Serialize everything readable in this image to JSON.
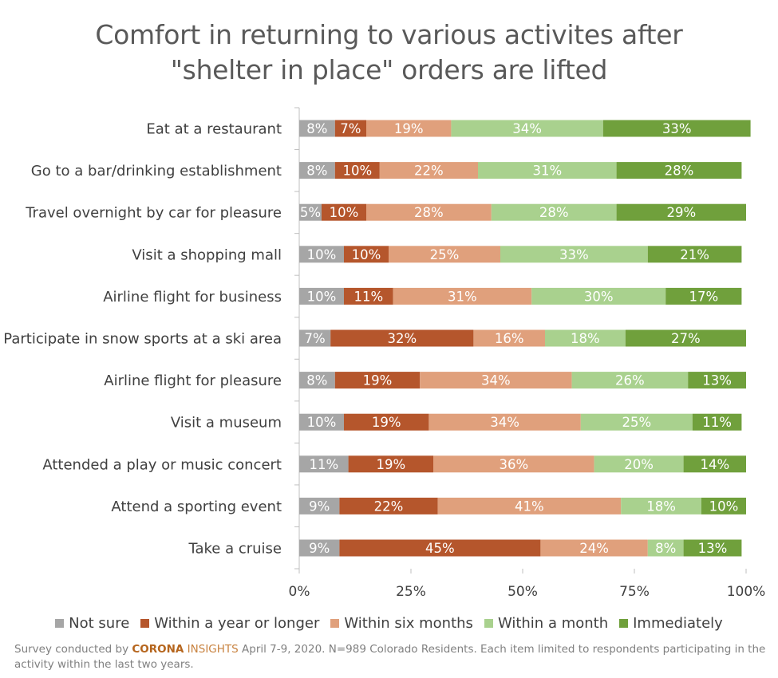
{
  "title_line1": "Comfort in returning to various activites after",
  "title_line2": "\"shelter in place\" orders are lifted",
  "chart_data": {
    "type": "bar",
    "orientation": "horizontal",
    "stacked": "100%",
    "categories": [
      "Eat at a restaurant",
      "Go to a bar/drinking establishment",
      "Travel overnight by car for pleasure",
      "Visit a shopping mall",
      "Airline flight for business",
      "Participate in snow sports at a ski area",
      "Airline flight for pleasure",
      "Visit a museum",
      "Attended a play or music concert",
      "Attend a sporting event",
      "Take a cruise"
    ],
    "series": [
      {
        "name": "Not sure",
        "color": "#a6a6a6",
        "label_color": "#ffffff",
        "values": [
          8,
          8,
          5,
          10,
          10,
          7,
          8,
          10,
          11,
          9,
          9
        ]
      },
      {
        "name": "Within a year or longer",
        "color": "#b5562c",
        "label_color": "#ffffff",
        "values": [
          7,
          10,
          10,
          10,
          11,
          32,
          19,
          19,
          19,
          22,
          45
        ]
      },
      {
        "name": "Within six months",
        "color": "#e0a07c",
        "label_color": "#ffffff",
        "values": [
          19,
          22,
          28,
          25,
          31,
          16,
          34,
          34,
          36,
          41,
          24
        ]
      },
      {
        "name": "Within a month",
        "color": "#a9d18e",
        "label_color": "#ffffff",
        "values": [
          34,
          31,
          28,
          33,
          30,
          18,
          26,
          25,
          20,
          18,
          8
        ]
      },
      {
        "name": "Immediately",
        "color": "#70a03c",
        "label_color": "#ffffff",
        "values": [
          33,
          28,
          29,
          21,
          17,
          27,
          13,
          11,
          14,
          10,
          13
        ]
      }
    ],
    "xlim": [
      0,
      100
    ],
    "x_ticks": [
      "0%",
      "25%",
      "50%",
      "75%",
      "100%"
    ],
    "value_suffix": "%",
    "legend_position": "bottom"
  },
  "footnote": {
    "prefix": "Survey conducted by ",
    "brand_part1": "CORONA",
    "brand_part2": " INSIGHTS",
    "suffix": " April 7-9, 2020. N=989 Colorado Residents. Each item limited to respondents participating in the activity within the last two years."
  }
}
